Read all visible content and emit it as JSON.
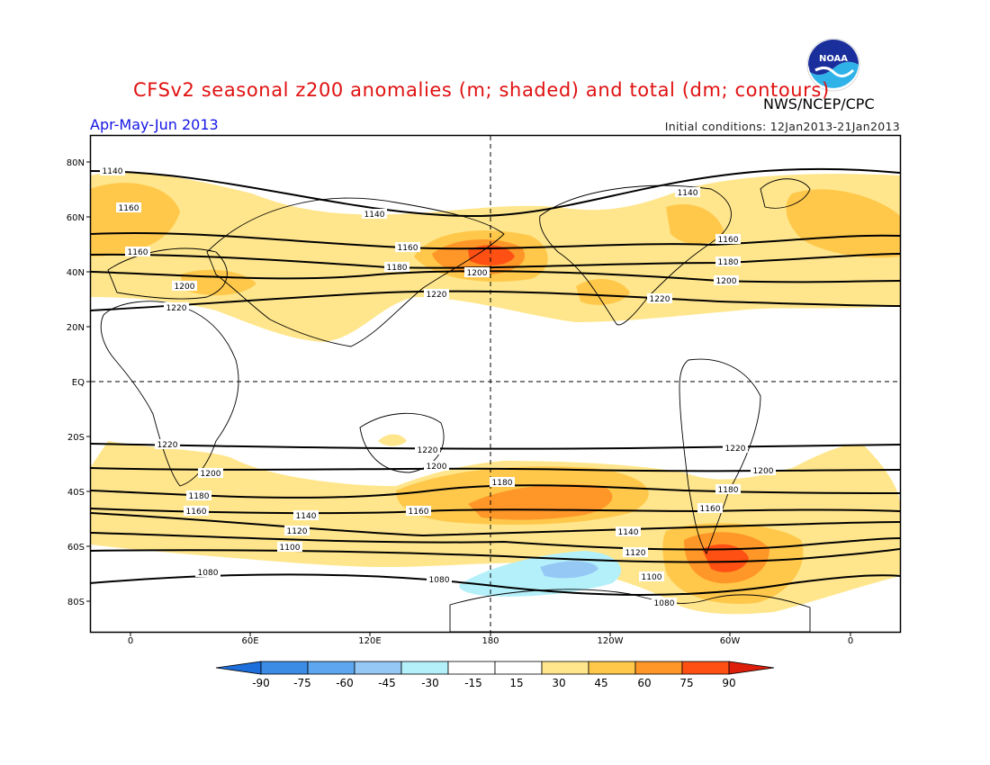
{
  "title": "CFSv2 seasonal z200 anomalies (m; shaded) and total (dm; contours)",
  "agency": "NWS/NCEP/CPC",
  "logo_text": "NOAA",
  "season": "Apr-May-Jun 2013",
  "initial_conditions": "Initial conditions: 12Jan2013-21Jan2013",
  "colors": {
    "neg90": "#1e6edc",
    "neg75": "#3c8ce6",
    "neg60": "#5ea6f0",
    "neg45": "#96c8f5",
    "neg30": "#b4f0fa",
    "neg15": "#ffffff",
    "pos15": "#ffffff",
    "pos30": "#ffe68c",
    "pos45": "#ffc84b",
    "pos60": "#ff9628",
    "pos75": "#ff5014",
    "pos90": "#dc1e0a"
  },
  "map": {
    "lat_labels": [
      "80N",
      "60N",
      "40N",
      "20N",
      "EQ",
      "20S",
      "40S",
      "60S",
      "80S"
    ],
    "lon_labels": [
      "0",
      "60E",
      "120E",
      "180",
      "120W",
      "60W",
      "0"
    ],
    "contour_labels": [
      {
        "text": "1140"
      },
      {
        "text": "1140"
      },
      {
        "text": "1140"
      },
      {
        "text": "1160"
      },
      {
        "text": "1160"
      },
      {
        "text": "1160"
      },
      {
        "text": "1160"
      },
      {
        "text": "1180"
      },
      {
        "text": "1180"
      },
      {
        "text": "1200"
      },
      {
        "text": "1200"
      },
      {
        "text": "1200"
      },
      {
        "text": "1220"
      },
      {
        "text": "1220"
      },
      {
        "text": "1220"
      },
      {
        "text": "1220"
      },
      {
        "text": "1220"
      },
      {
        "text": "1220"
      },
      {
        "text": "1200"
      },
      {
        "text": "1200"
      },
      {
        "text": "1200"
      },
      {
        "text": "1180"
      },
      {
        "text": "1180"
      },
      {
        "text": "1180"
      },
      {
        "text": "1160"
      },
      {
        "text": "1160"
      },
      {
        "text": "1160"
      },
      {
        "text": "1140"
      },
      {
        "text": "1140"
      },
      {
        "text": "1120"
      },
      {
        "text": "1120"
      },
      {
        "text": "1100"
      },
      {
        "text": "1100"
      },
      {
        "text": "1080"
      },
      {
        "text": "1080"
      },
      {
        "text": "1080"
      }
    ]
  },
  "colorbar": {
    "labels": [
      "-90",
      "-75",
      "-60",
      "-45",
      "-30",
      "-15",
      "15",
      "30",
      "45",
      "60",
      "75",
      "90"
    ]
  }
}
